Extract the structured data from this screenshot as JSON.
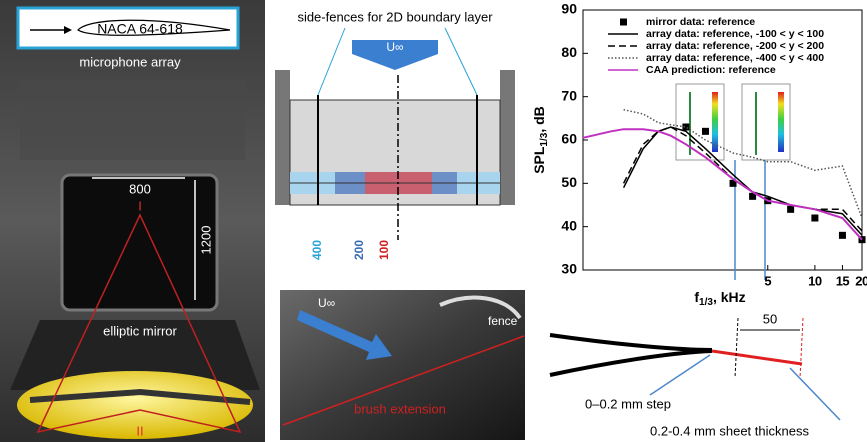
{
  "panels": {
    "photo_setup": {
      "airfoil_label": "NACA 64-618",
      "array_label": "microphone array",
      "width_label": "800",
      "height_label": "1200",
      "focus_1": "I",
      "mirror_label": "elliptic mirror",
      "focus_2": "II"
    },
    "fence_diagram": {
      "title": "side-fences for 2D boundary layer",
      "flow_label": "U∞",
      "width_labels": [
        "400",
        "200",
        "100"
      ]
    },
    "photo_brush": {
      "flow_label": "U∞",
      "fence_label": "fence",
      "brush_label": "brush extension"
    },
    "step_sketch": {
      "length_label": "50",
      "step_label": "0–0.2 mm step",
      "thickness_label": "0.2-0.4 mm sheet thickness"
    }
  },
  "chart_data": {
    "type": "line",
    "xlabel": "f",
    "xlabel_sub": "1/3",
    "xlabel_unit": ", kHz",
    "ylabel": "SPL",
    "ylabel_sub": "1/3",
    "ylabel_unit": ", dB",
    "xscale": "log",
    "xlim": [
      0.33,
      20
    ],
    "xticks": [
      5,
      10,
      15,
      20
    ],
    "ylim": [
      30,
      90
    ],
    "yticks": [
      30,
      40,
      50,
      60,
      70,
      80,
      90
    ],
    "legend": "upper right",
    "x": [
      0.33,
      0.5,
      0.6,
      0.8,
      1,
      1.2,
      1.5,
      2,
      3,
      4,
      5,
      7,
      10,
      15,
      20
    ],
    "series": [
      {
        "name": "mirror data: reference",
        "color": "#000000",
        "marker": "square",
        "dash": "none",
        "values": [
          null,
          null,
          null,
          null,
          null,
          null,
          63,
          62,
          50,
          47,
          46,
          44,
          42,
          38,
          37
        ]
      },
      {
        "name": "array data: reference, -100 < y < 100",
        "color": "#000000",
        "marker": "none",
        "dash": "solid",
        "values": [
          null,
          null,
          49,
          58,
          62,
          63,
          62,
          58,
          52,
          48,
          47,
          45,
          44,
          43,
          38
        ]
      },
      {
        "name": "array data: reference, -200 < y < 200",
        "color": "#000000",
        "marker": "none",
        "dash": "dashed",
        "values": [
          null,
          null,
          50,
          59,
          62,
          63,
          61,
          57,
          51,
          48,
          46,
          45,
          44,
          44,
          39
        ]
      },
      {
        "name": "array data: reference, -400 < y < 400",
        "color": "#555555",
        "marker": "none",
        "dash": "dotted",
        "values": [
          null,
          null,
          67,
          66,
          64,
          63.5,
          63,
          60,
          57,
          56,
          55,
          55,
          53,
          54,
          42
        ]
      },
      {
        "name": "CAA prediction: reference",
        "color": "#c030c0",
        "marker": "none",
        "dash": "solid",
        "values": [
          60.5,
          62,
          62.5,
          62.5,
          62,
          61,
          59,
          56,
          51,
          48,
          46,
          45,
          44,
          42,
          37
        ]
      }
    ]
  }
}
